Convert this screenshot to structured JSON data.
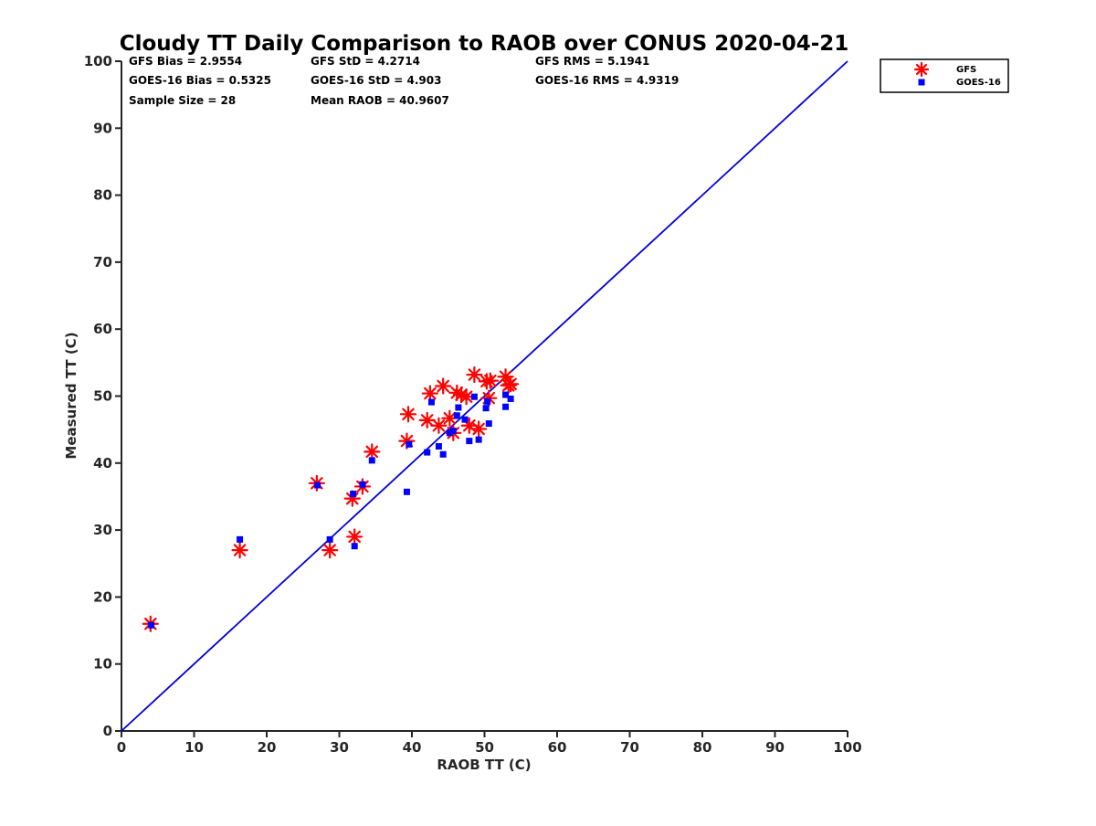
{
  "chart_data": {
    "type": "scatter",
    "title": "Cloudy TT Daily Comparison to RAOB over CONUS 2020-04-21",
    "xlabel": "RAOB TT (C)",
    "ylabel": "Measured TT (C)",
    "xlim": [
      0,
      100
    ],
    "ylim": [
      0,
      100
    ],
    "xticks": [
      "0",
      "10",
      "20",
      "30",
      "40",
      "50",
      "60",
      "70",
      "80",
      "90",
      "100"
    ],
    "yticks": [
      "0",
      "10",
      "20",
      "30",
      "40",
      "50",
      "60",
      "70",
      "80",
      "90",
      "100"
    ],
    "grid": false,
    "legend_position": "top-right",
    "reference_line": {
      "from": [
        0,
        0
      ],
      "to": [
        100,
        100
      ],
      "color": "#0000dd"
    },
    "stats": [
      [
        "GFS Bias = 2.9554",
        "GFS StD = 4.2714",
        "GFS RMS = 5.1941"
      ],
      [
        "GOES-16 Bias = 0.5325",
        "GOES-16 StD = 4.903",
        "GOES-16 RMS = 4.9319"
      ],
      [
        "Sample Size = 28",
        "Mean RAOB = 40.9607",
        ""
      ]
    ],
    "series": [
      {
        "name": "GFS",
        "marker": "asterisk",
        "color": "#ff0000",
        "points": [
          [
            4.0,
            16.0
          ],
          [
            16.3,
            27.0
          ],
          [
            26.9,
            37.0
          ],
          [
            28.7,
            27.0
          ],
          [
            31.8,
            34.7
          ],
          [
            32.1,
            29.0
          ],
          [
            33.2,
            36.5
          ],
          [
            34.5,
            41.7
          ],
          [
            39.3,
            43.3
          ],
          [
            39.5,
            47.3
          ],
          [
            42.1,
            46.4
          ],
          [
            42.5,
            50.4
          ],
          [
            43.7,
            45.6
          ],
          [
            44.3,
            51.5
          ],
          [
            45.2,
            46.7
          ],
          [
            45.7,
            44.5
          ],
          [
            46.2,
            50.5
          ],
          [
            46.8,
            50.2
          ],
          [
            47.5,
            49.9
          ],
          [
            47.9,
            45.6
          ],
          [
            48.6,
            53.2
          ],
          [
            49.2,
            45.1
          ],
          [
            50.3,
            52.2
          ],
          [
            50.6,
            49.7
          ],
          [
            50.8,
            52.3
          ],
          [
            52.9,
            52.9
          ],
          [
            53.3,
            51.6
          ],
          [
            53.6,
            51.8
          ]
        ]
      },
      {
        "name": "GOES-16",
        "marker": "square",
        "color": "#0000ff",
        "points": [
          [
            4.1,
            15.8
          ],
          [
            16.3,
            28.6
          ],
          [
            27.0,
            36.7
          ],
          [
            28.7,
            28.6
          ],
          [
            31.9,
            35.4
          ],
          [
            32.1,
            27.6
          ],
          [
            33.2,
            36.8
          ],
          [
            34.5,
            40.4
          ],
          [
            39.3,
            35.7
          ],
          [
            39.6,
            42.8
          ],
          [
            42.1,
            41.6
          ],
          [
            42.7,
            49.1
          ],
          [
            43.7,
            42.5
          ],
          [
            44.3,
            41.3
          ],
          [
            45.2,
            44.5
          ],
          [
            45.7,
            44.8
          ],
          [
            46.2,
            47.1
          ],
          [
            46.4,
            48.3
          ],
          [
            47.3,
            46.5
          ],
          [
            47.9,
            43.3
          ],
          [
            48.6,
            49.9
          ],
          [
            49.2,
            43.5
          ],
          [
            50.2,
            48.2
          ],
          [
            50.4,
            49.2
          ],
          [
            50.6,
            45.9
          ],
          [
            52.9,
            50.2
          ],
          [
            52.9,
            48.4
          ],
          [
            53.6,
            49.6
          ]
        ]
      }
    ]
  }
}
